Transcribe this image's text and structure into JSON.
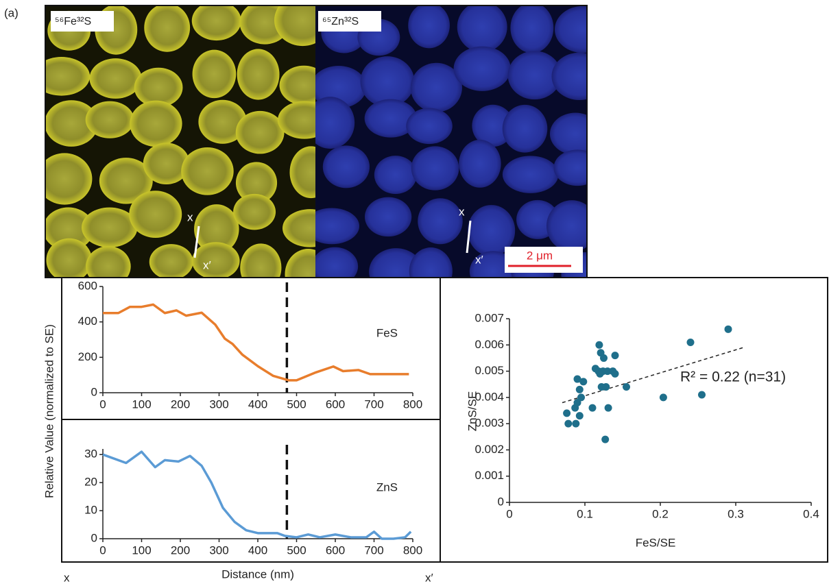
{
  "panel_label": "(a)",
  "images": [
    {
      "label": "⁵⁶Fe³²S",
      "markers": [
        "x",
        "x′"
      ]
    },
    {
      "label": "⁶⁵Zn³²S",
      "markers": [
        "x",
        "x′"
      ],
      "scale_bar": "2 μm"
    }
  ],
  "profile_ends": [
    "x",
    "x′"
  ],
  "chart_data": [
    {
      "type": "line",
      "ylabel": "Relative Value (normalized to SE)",
      "x": [
        0,
        40,
        70,
        100,
        130,
        160,
        190,
        215,
        255,
        290,
        315,
        335,
        360,
        400,
        440,
        480,
        500,
        550,
        595,
        620,
        660,
        690,
        790
      ],
      "series": [
        {
          "name": "FeS",
          "color": "#e87d2c",
          "values": [
            450,
            450,
            485,
            485,
            498,
            450,
            465,
            435,
            452,
            385,
            305,
            275,
            215,
            150,
            95,
            70,
            70,
            115,
            148,
            122,
            128,
            105,
            105
          ]
        }
      ],
      "xlim": [
        0,
        800
      ],
      "xticks": [
        0,
        100,
        200,
        300,
        400,
        500,
        600,
        700,
        800
      ],
      "ylim": [
        0,
        600
      ],
      "yticks": [
        0,
        200,
        400,
        600
      ],
      "vline": 475
    },
    {
      "type": "line",
      "xlabel": "Distance (nm)",
      "x": [
        0,
        60,
        100,
        135,
        160,
        195,
        225,
        255,
        280,
        310,
        340,
        370,
        400,
        450,
        470,
        500,
        530,
        560,
        600,
        640,
        680,
        700,
        720,
        750,
        780,
        795
      ],
      "series": [
        {
          "name": "ZnS",
          "color": "#5b9bd5",
          "values": [
            30,
            27,
            31,
            25.5,
            28,
            27.5,
            29.5,
            26,
            20,
            11,
            6,
            3,
            2,
            2,
            1,
            0.5,
            1.5,
            0.5,
            1.5,
            0.5,
            0.5,
            2.5,
            0,
            0,
            0.5,
            2.5
          ]
        }
      ],
      "xlim": [
        0,
        800
      ],
      "xticks": [
        0,
        100,
        200,
        300,
        400,
        500,
        600,
        700,
        800
      ],
      "ylim": [
        0,
        32
      ],
      "yticks": [
        0,
        10,
        20,
        30
      ],
      "vline": 475
    },
    {
      "type": "scatter",
      "xlabel": "FeS/SE",
      "ylabel": "ZnS/SE",
      "color": "#1f6f8b",
      "x": [
        0.29,
        0.24,
        0.119,
        0.121,
        0.125,
        0.14,
        0.114,
        0.118,
        0.124,
        0.13,
        0.137,
        0.14,
        0.155,
        0.122,
        0.128,
        0.09,
        0.098,
        0.093,
        0.095,
        0.087,
        0.093,
        0.11,
        0.076,
        0.078,
        0.088,
        0.131,
        0.127,
        0.204,
        0.255,
        0.09,
        0.12
      ],
      "values": [
        0.0066,
        0.0061,
        0.006,
        0.0057,
        0.0055,
        0.0056,
        0.0051,
        0.005,
        0.005,
        0.005,
        0.005,
        0.0049,
        0.0044,
        0.0044,
        0.0044,
        0.0047,
        0.0046,
        0.0043,
        0.004,
        0.0036,
        0.0033,
        0.0036,
        0.0034,
        0.003,
        0.003,
        0.0036,
        0.0024,
        0.004,
        0.0041,
        0.0038,
        0.0049
      ],
      "trendline": {
        "x": [
          0.07,
          0.31
        ],
        "y": [
          0.0038,
          0.0059
        ]
      },
      "annotation": "R² = 0.22 (n=31)",
      "xlim": [
        0,
        0.4
      ],
      "xticks": [
        0,
        0.1,
        0.2,
        0.3,
        0.4
      ],
      "ylim": [
        0,
        0.007
      ],
      "yticks": [
        0,
        0.001,
        0.002,
        0.003,
        0.004,
        0.005,
        0.006,
        0.007
      ]
    }
  ]
}
